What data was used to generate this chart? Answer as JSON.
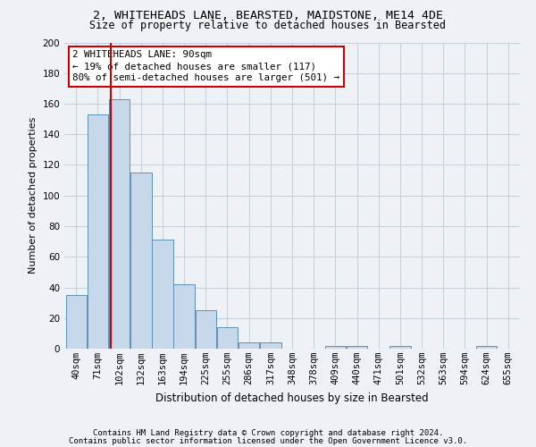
{
  "title1": "2, WHITEHEADS LANE, BEARSTED, MAIDSTONE, ME14 4DE",
  "title2": "Size of property relative to detached houses in Bearsted",
  "xlabel": "Distribution of detached houses by size in Bearsted",
  "ylabel": "Number of detached properties",
  "footer1": "Contains HM Land Registry data © Crown copyright and database right 2024.",
  "footer2": "Contains public sector information licensed under the Open Government Licence v3.0.",
  "bar_labels": [
    "40sqm",
    "71sqm",
    "102sqm",
    "132sqm",
    "163sqm",
    "194sqm",
    "225sqm",
    "255sqm",
    "286sqm",
    "317sqm",
    "348sqm",
    "378sqm",
    "409sqm",
    "440sqm",
    "471sqm",
    "501sqm",
    "532sqm",
    "563sqm",
    "594sqm",
    "624sqm",
    "655sqm"
  ],
  "bar_values": [
    35,
    153,
    163,
    115,
    71,
    42,
    25,
    14,
    4,
    4,
    0,
    0,
    2,
    2,
    0,
    2,
    0,
    0,
    0,
    2,
    0
  ],
  "bar_color": "#c8d8eb",
  "bar_edge_color": "#6090b8",
  "grid_color": "#c8d0da",
  "annotation_text1": "2 WHITEHEADS LANE: 90sqm",
  "annotation_text2": "← 19% of detached houses are smaller (117)",
  "annotation_text3": "80% of semi-detached houses are larger (501) →",
  "annotation_box_color": "#ffffff",
  "annotation_box_edge": "#cc0000",
  "vline_color": "#cc0000",
  "ylim": [
    0,
    200
  ],
  "yticks": [
    0,
    20,
    40,
    60,
    80,
    100,
    120,
    140,
    160,
    180,
    200
  ],
  "bin_width": 31,
  "xmin": 40,
  "background_color": "#eef2f7",
  "title1_fontsize": 9.5,
  "title2_fontsize": 8.5,
  "xlabel_fontsize": 8.5,
  "ylabel_fontsize": 8.0,
  "tick_fontsize": 7.5,
  "footer_fontsize": 6.5,
  "annot_fontsize": 7.8
}
